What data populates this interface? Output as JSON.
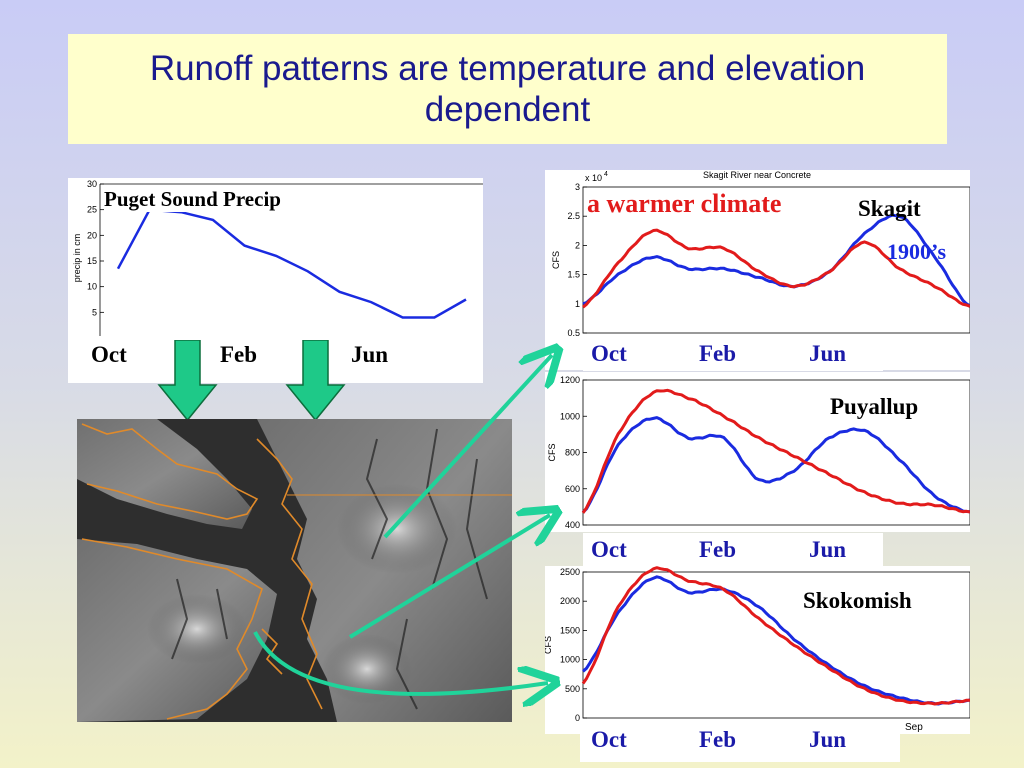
{
  "slide": {
    "title": "Runoff patterns are temperature and elevation dependent"
  },
  "month_labels": {
    "oct": "Oct",
    "feb": "Feb",
    "jun": "Jun",
    "sep": "Sep"
  },
  "colors": {
    "historical": "#1a2be0",
    "warmer": "#e21b1b",
    "precip": "#1a2be0",
    "down_arrow": "#1ec988",
    "link_arrow": "#20d39a",
    "title_text": "#1a1a8e",
    "month_text_blue": "#1a1aa8"
  },
  "chart_data": [
    {
      "id": "precip",
      "type": "line",
      "title": "Puget Sound Precip",
      "ylabel": "precip in cm",
      "ylim": [
        0,
        30
      ],
      "yticks": [
        5,
        10,
        15,
        20,
        25,
        30
      ],
      "series": [
        {
          "values": [
            13.5,
            25,
            24.5,
            23,
            18,
            16,
            13,
            9,
            7,
            4,
            4,
            7.5
          ]
        }
      ]
    },
    {
      "id": "skagit",
      "type": "line",
      "title": "Skagit River near Concrete",
      "scale_label": "x 10",
      "scale_exp": "4",
      "ylabel": "CFS",
      "ylim": [
        0.5,
        3
      ],
      "yticks": [
        "0.5",
        "1",
        "1.5",
        "2",
        "2.5",
        "3"
      ],
      "annotation": "a warmer climate",
      "label": "Skagit",
      "hist_label": "1900’s",
      "series": [
        {
          "name": "1900’s",
          "color": "historical",
          "values": [
            1.0,
            1.5,
            1.8,
            1.6,
            1.6,
            1.45,
            1.3,
            1.55,
            2.2,
            2.5,
            1.8,
            0.95
          ]
        },
        {
          "name": "a warmer climate",
          "color": "warmer",
          "values": [
            0.95,
            1.7,
            2.25,
            1.95,
            1.95,
            1.55,
            1.3,
            1.55,
            2.05,
            1.6,
            1.3,
            0.95
          ]
        }
      ]
    },
    {
      "id": "puyallup",
      "type": "line",
      "ylabel": "CFS",
      "label": "Puyallup",
      "ylim": [
        400,
        1200
      ],
      "yticks": [
        "400",
        "600",
        "800",
        "1000",
        "1200"
      ],
      "series": [
        {
          "color": "historical",
          "values": [
            470,
            840,
            990,
            880,
            880,
            650,
            700,
            880,
            920,
            760,
            560,
            470
          ]
        },
        {
          "color": "warmer",
          "values": [
            470,
            900,
            1130,
            1100,
            1000,
            880,
            780,
            680,
            580,
            520,
            510,
            470
          ]
        }
      ]
    },
    {
      "id": "skokomish",
      "type": "line",
      "ylabel": "CFS",
      "label": "Skokomish",
      "ylim": [
        0,
        2500
      ],
      "yticks": [
        "0",
        "500",
        "1000",
        "1500",
        "2000",
        "2500"
      ],
      "series": [
        {
          "color": "historical",
          "values": [
            800,
            1800,
            2400,
            2150,
            2200,
            1900,
            1350,
            900,
            550,
            350,
            250,
            300
          ]
        },
        {
          "color": "warmer",
          "values": [
            600,
            1900,
            2550,
            2350,
            2200,
            1700,
            1250,
            850,
            500,
            300,
            250,
            300
          ]
        }
      ]
    }
  ]
}
